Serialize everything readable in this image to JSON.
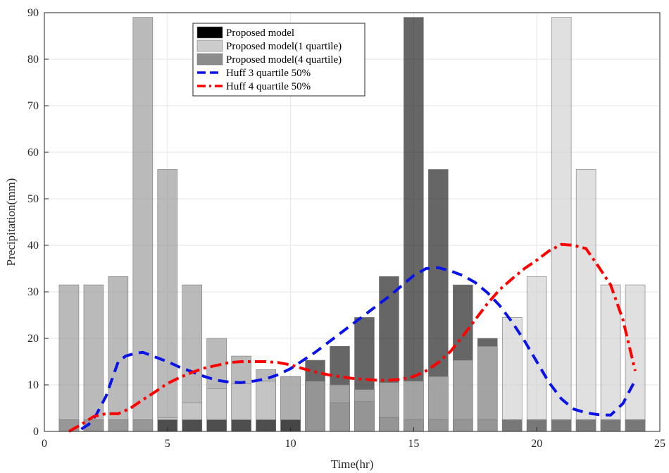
{
  "chart_data": {
    "type": "bar",
    "xlabel": "Time(hr)",
    "ylabel": "Precipitation(mm)",
    "xlim": [
      0,
      25
    ],
    "ylim": [
      0,
      90
    ],
    "xticks": [
      0,
      5,
      10,
      15,
      20,
      25
    ],
    "yticks": [
      0,
      10,
      20,
      30,
      40,
      50,
      60,
      70,
      80,
      90
    ],
    "grid": true,
    "legend_position": "top-center",
    "x": [
      1,
      2,
      3,
      4,
      5,
      6,
      7,
      8,
      9,
      10,
      11,
      12,
      13,
      14,
      15,
      16,
      17,
      18,
      19,
      20,
      21,
      22,
      23,
      24
    ],
    "series": [
      {
        "name": "Proposed model",
        "kind": "bar",
        "color": "#000000",
        "values": [
          2.5,
          2.5,
          2.5,
          2.5,
          2.5,
          2.5,
          2.5,
          2.5,
          2.5,
          2.5,
          15.3,
          18.3,
          24.5,
          33.3,
          89.0,
          56.3,
          31.5,
          20.0,
          2.5,
          2.5,
          2.5,
          2.5,
          2.5,
          2.5
        ]
      },
      {
        "name": "Proposed model(1 quartile)",
        "kind": "bar",
        "color": "#cccccc",
        "values": [
          2.5,
          2.5,
          2.5,
          2.5,
          3.0,
          6.2,
          9.2,
          10.2,
          10.8,
          11.8,
          10.8,
          10.0,
          9.0,
          10.5,
          10.8,
          11.8,
          15.3,
          18.3,
          24.5,
          33.3,
          89.0,
          56.3,
          31.5,
          31.5
        ]
      },
      {
        "name": "Proposed model(4 quartile)",
        "kind": "bar",
        "color": "#8c8c8c",
        "values": [
          31.5,
          31.5,
          33.3,
          89.0,
          56.3,
          31.5,
          20.0,
          16.2,
          13.3,
          11.8,
          10.8,
          6.2,
          6.4,
          3.0,
          2.5,
          2.5,
          2.5,
          2.5,
          2.5,
          2.5,
          2.5,
          2.5,
          2.5,
          2.5
        ]
      },
      {
        "name": "Huff 3 quartile 50%",
        "kind": "line",
        "color": "#0a14e6",
        "dash": "dashed",
        "x": [
          1.5,
          1.8,
          2.1,
          2.5,
          2.8,
          3.0,
          3.3,
          3.7,
          4.0,
          4.5,
          5.0,
          5.5,
          6.0,
          6.5,
          7.0,
          7.5,
          8.0,
          8.5,
          9.0,
          9.5,
          10.0,
          11.0,
          12.0,
          13.0,
          14.0,
          15.0,
          15.5,
          16.0,
          16.5,
          17.0,
          17.5,
          18.0,
          18.5,
          19.0,
          19.5,
          20.0,
          20.5,
          21.0,
          21.5,
          22.0,
          22.5,
          23.0,
          23.5,
          24.0
        ],
        "values": [
          0.5,
          1.5,
          3.5,
          7.5,
          12.0,
          15.0,
          16.2,
          16.8,
          17.0,
          16.0,
          15.0,
          13.8,
          12.8,
          11.8,
          11.0,
          10.6,
          10.5,
          10.8,
          11.3,
          12.2,
          13.5,
          17.0,
          21.0,
          25.0,
          29.0,
          33.5,
          35.0,
          35.2,
          34.5,
          33.5,
          32.0,
          29.8,
          27.0,
          23.5,
          19.5,
          15.0,
          10.5,
          7.0,
          4.8,
          4.0,
          3.6,
          3.5,
          6.0,
          11.0
        ]
      },
      {
        "name": "Huff 4 quartile 50%",
        "kind": "line",
        "color": "#ff0000",
        "dash": "dashdot",
        "x": [
          1.0,
          1.5,
          2.0,
          2.5,
          3.0,
          3.5,
          4.0,
          4.5,
          5.0,
          5.5,
          6.0,
          6.5,
          7.0,
          7.5,
          8.0,
          8.5,
          9.0,
          9.5,
          10.0,
          10.5,
          11.0,
          11.5,
          12.0,
          12.5,
          13.0,
          13.5,
          14.0,
          14.5,
          15.0,
          15.5,
          16.0,
          16.5,
          17.0,
          17.5,
          18.0,
          18.5,
          19.0,
          19.5,
          20.0,
          20.5,
          21.0,
          21.5,
          22.0,
          22.5,
          23.0,
          23.5,
          24.0
        ],
        "values": [
          0.0,
          1.5,
          3.2,
          3.8,
          3.8,
          5.0,
          6.8,
          8.5,
          10.3,
          11.6,
          12.7,
          13.6,
          14.2,
          14.8,
          15.0,
          15.0,
          15.0,
          14.8,
          14.3,
          13.5,
          12.8,
          12.2,
          11.8,
          11.4,
          11.2,
          11.0,
          11.0,
          11.2,
          11.8,
          13.0,
          14.8,
          17.2,
          20.5,
          24.0,
          27.5,
          30.5,
          32.8,
          35.0,
          36.8,
          38.8,
          40.2,
          40.0,
          39.3,
          35.5,
          31.5,
          24.0,
          13.0
        ]
      }
    ]
  }
}
